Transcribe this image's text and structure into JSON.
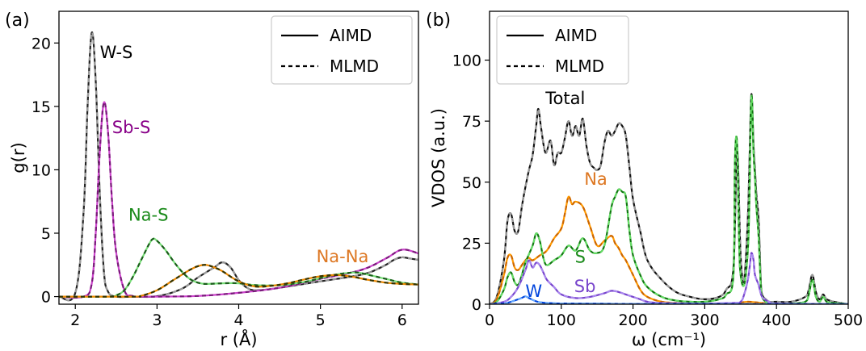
{
  "chart_data": [
    {
      "panel_label": "(a)",
      "type": "line",
      "xlabel": "r (Å)",
      "ylabel": "g(r)",
      "xlim": [
        1.8,
        6.2
      ],
      "ylim": [
        -0.6,
        22.5
      ],
      "xticks": [
        2,
        3,
        4,
        5,
        6
      ],
      "yticks": [
        0,
        5,
        10,
        15,
        20
      ],
      "legend": {
        "placement": "top-right",
        "entries": [
          "AIMD",
          "MLMD"
        ]
      },
      "series": [
        {
          "name": "W-S",
          "color": "#222222",
          "mlmd_color": "#9a9a9a",
          "x": [
            1.8,
            2.0,
            2.1,
            2.15,
            2.2,
            2.25,
            2.3,
            2.35,
            2.4,
            2.5,
            2.7,
            3.0,
            3.3,
            3.5,
            3.7,
            3.8,
            3.9,
            4.0,
            4.1,
            4.2,
            4.4,
            4.6,
            4.8,
            5.0,
            5.2,
            5.4,
            5.6,
            5.8,
            5.9,
            6.0,
            6.1,
            6.2
          ],
          "y": [
            0,
            0.3,
            6.5,
            15.0,
            20.8,
            17.0,
            8.0,
            2.0,
            0.4,
            0,
            0,
            0.03,
            0.6,
            1.5,
            2.3,
            2.7,
            2.3,
            1.3,
            0.7,
            0.5,
            0.6,
            0.8,
            1.0,
            1.2,
            1.4,
            1.6,
            1.9,
            2.5,
            2.9,
            3.1,
            3.0,
            2.9
          ]
        },
        {
          "name": "Sb-S",
          "color": "#cc44cc",
          "mlmd_color": "#7a1a7a",
          "x": [
            1.8,
            2.1,
            2.2,
            2.25,
            2.3,
            2.35,
            2.4,
            2.45,
            2.5,
            2.6,
            2.7,
            2.8,
            3.0,
            3.5,
            4.0,
            4.5,
            5.0,
            5.5,
            5.8,
            6.0,
            6.2
          ],
          "y": [
            0,
            0,
            1.0,
            5.0,
            11.5,
            15.3,
            13.0,
            7.5,
            3.5,
            0.5,
            0.05,
            0,
            0,
            0.05,
            0.3,
            0.7,
            1.4,
            2.1,
            3.0,
            3.7,
            3.4
          ]
        },
        {
          "name": "Na-S",
          "color": "#77dd77",
          "mlmd_color": "#1a5c1a",
          "x": [
            1.8,
            2.4,
            2.5,
            2.6,
            2.7,
            2.8,
            2.9,
            2.95,
            3.0,
            3.1,
            3.2,
            3.3,
            3.4,
            3.5,
            3.6,
            3.8,
            4.0,
            4.2,
            4.5,
            4.8,
            5.0,
            5.2,
            5.4,
            5.5,
            5.6,
            5.8,
            6.0,
            6.2
          ],
          "y": [
            0,
            0,
            0.1,
            0.5,
            1.5,
            2.8,
            4.1,
            4.55,
            4.4,
            3.7,
            2.8,
            2.0,
            1.4,
            1.1,
            1.0,
            1.05,
            1.05,
            0.9,
            0.9,
            1.15,
            1.45,
            1.75,
            1.9,
            1.85,
            1.7,
            1.4,
            1.1,
            0.95
          ]
        },
        {
          "name": "Na-Na",
          "color": "#ee8800",
          "mlmd_color": "#333300",
          "x": [
            1.8,
            2.7,
            2.8,
            3.0,
            3.2,
            3.4,
            3.5,
            3.6,
            3.7,
            3.8,
            4.0,
            4.2,
            4.4,
            4.6,
            4.8,
            5.0,
            5.2,
            5.4,
            5.6,
            5.8,
            6.0,
            6.2
          ],
          "y": [
            0,
            0,
            0.05,
            0.5,
            1.3,
            2.1,
            2.4,
            2.5,
            2.3,
            2.0,
            1.2,
            0.8,
            0.85,
            1.05,
            1.35,
            1.6,
            1.7,
            1.55,
            1.3,
            1.1,
            1.0,
            0.95
          ]
        }
      ],
      "annotations": [
        {
          "text": "W-S",
          "color": "#000000",
          "x": 2.3,
          "y": 18.8
        },
        {
          "text": "Sb-S",
          "color": "#880088",
          "x": 2.45,
          "y": 12.9
        },
        {
          "text": "Na-S",
          "color": "#1a8a1a",
          "x": 2.65,
          "y": 6.0
        },
        {
          "text": "Na-Na",
          "color": "#dd7722",
          "x": 4.95,
          "y": 2.7
        }
      ]
    },
    {
      "panel_label": "(b)",
      "type": "line",
      "xlabel": "ω (cm⁻¹)",
      "ylabel": "VDOS (a.u.)",
      "xlim": [
        0,
        500
      ],
      "ylim": [
        0,
        120
      ],
      "xticks": [
        0,
        100,
        200,
        300,
        400,
        500
      ],
      "yticks": [
        0,
        25,
        50,
        75,
        100
      ],
      "legend": {
        "placement": "top-left",
        "entries": [
          "AIMD",
          "MLMD"
        ]
      },
      "series": [
        {
          "name": "Total",
          "color": "#111111",
          "mlmd_color": "#999999",
          "x": [
            0,
            10,
            20,
            25,
            30,
            35,
            40,
            45,
            50,
            55,
            60,
            65,
            68,
            72,
            78,
            85,
            90,
            95,
            100,
            105,
            110,
            115,
            120,
            125,
            130,
            135,
            140,
            145,
            150,
            155,
            160,
            165,
            170,
            175,
            180,
            185,
            190,
            195,
            200,
            210,
            220,
            240,
            260,
            280,
            300,
            320,
            330,
            340,
            345,
            350,
            355,
            360,
            362,
            365,
            368,
            370,
            372,
            375,
            378,
            380,
            385,
            390,
            400,
            420,
            440,
            445,
            450,
            455,
            460,
            465,
            470,
            480,
            500
          ],
          "y": [
            0,
            3,
            18,
            34,
            37,
            30,
            30,
            40,
            48,
            55,
            61,
            73,
            80,
            72,
            62,
            67,
            57,
            62,
            62,
            68,
            75,
            69,
            73,
            69,
            76,
            65,
            58,
            56,
            55,
            57,
            66,
            71,
            69,
            71,
            74,
            73,
            69,
            56,
            43,
            30,
            18,
            10,
            5,
            3,
            2,
            3,
            6,
            15,
            63,
            20,
            10,
            35,
            55,
            86,
            65,
            55,
            45,
            35,
            10,
            4,
            2,
            1,
            1,
            1,
            3,
            6,
            12,
            5,
            2,
            4,
            2,
            1,
            0
          ]
        },
        {
          "name": "Na",
          "color": "#ff9900",
          "mlmd_color": "#cc6600",
          "x": [
            0,
            10,
            20,
            25,
            30,
            35,
            40,
            45,
            50,
            55,
            60,
            70,
            80,
            90,
            100,
            105,
            110,
            115,
            120,
            130,
            140,
            150,
            160,
            170,
            175,
            180,
            185,
            190,
            200,
            210,
            220,
            240,
            260,
            280,
            300,
            340,
            360,
            380,
            400,
            500
          ],
          "y": [
            0,
            2,
            12,
            19,
            20,
            15,
            14,
            16,
            18,
            19,
            18,
            20,
            22,
            27,
            31,
            37,
            44,
            41,
            42,
            40,
            32,
            24,
            26,
            28,
            25,
            23,
            20,
            18,
            12,
            6,
            3,
            1,
            0.5,
            0.3,
            0.2,
            0.3,
            1,
            0.5,
            0.2,
            0
          ]
        },
        {
          "name": "S",
          "color": "#117711",
          "mlmd_color": "#66dd66",
          "x": [
            0,
            10,
            20,
            25,
            30,
            35,
            40,
            45,
            50,
            60,
            65,
            70,
            75,
            80,
            90,
            100,
            110,
            120,
            130,
            140,
            150,
            160,
            170,
            175,
            180,
            185,
            190,
            195,
            200,
            210,
            220,
            240,
            260,
            280,
            300,
            320,
            330,
            340,
            342,
            345,
            348,
            350,
            355,
            360,
            362,
            365,
            368,
            370,
            372,
            375,
            378,
            380,
            385,
            390,
            400,
            420,
            440,
            445,
            450,
            455,
            460,
            465,
            470,
            480,
            500
          ],
          "y": [
            0,
            1,
            6,
            11,
            13,
            9,
            8,
            12,
            17,
            24,
            29,
            26,
            19,
            16,
            18,
            20,
            24,
            22,
            27,
            22,
            21,
            24,
            40,
            44,
            47,
            46,
            44,
            30,
            20,
            12,
            7,
            3,
            1.5,
            1,
            1,
            2,
            4,
            12,
            58,
            66,
            25,
            12,
            8,
            22,
            40,
            85,
            62,
            52,
            40,
            28,
            8,
            3,
            1,
            0.5,
            0.3,
            0.3,
            1,
            4,
            10,
            3,
            1,
            3,
            1,
            0.5,
            0
          ]
        },
        {
          "name": "Sb",
          "color": "#7744cc",
          "mlmd_color": "#aa88ee",
          "x": [
            0,
            20,
            30,
            40,
            50,
            55,
            60,
            65,
            70,
            75,
            80,
            90,
            100,
            120,
            140,
            160,
            170,
            180,
            190,
            200,
            210,
            220,
            240,
            300,
            340,
            350,
            355,
            360,
            363,
            365,
            368,
            370,
            375,
            380,
            390,
            400,
            500
          ],
          "y": [
            0,
            1,
            3,
            7,
            14,
            18,
            15,
            17,
            16,
            13,
            10,
            7,
            4,
            2.5,
            3,
            4.5,
            5.5,
            5,
            4,
            3,
            2,
            1,
            0.5,
            0.3,
            0.5,
            1,
            4,
            10,
            16,
            21,
            18,
            12,
            8,
            3,
            1,
            0.3,
            0
          ]
        },
        {
          "name": "W",
          "color": "#0044dd",
          "mlmd_color": "#66aaff",
          "x": [
            0,
            20,
            30,
            40,
            45,
            50,
            55,
            60,
            65,
            70,
            80,
            90,
            100,
            150,
            200,
            300,
            350,
            500
          ],
          "y": [
            0,
            0.3,
            1,
            2,
            2.6,
            3.2,
            2.5,
            1.8,
            1.2,
            0.8,
            0.5,
            0.4,
            0.3,
            0.2,
            0.1,
            0.05,
            0.05,
            0
          ]
        }
      ],
      "annotations": [
        {
          "text": "Total",
          "color": "#000000",
          "x": 78,
          "y": 82
        },
        {
          "text": "Na",
          "color": "#dd7722",
          "x": 132,
          "y": 49
        },
        {
          "text": "S",
          "color": "#1a8a1a",
          "x": 119,
          "y": 17
        },
        {
          "text": "Sb",
          "color": "#7744cc",
          "x": 118,
          "y": 5
        },
        {
          "text": "W",
          "color": "#0044dd",
          "x": 50,
          "y": 3
        }
      ]
    }
  ]
}
